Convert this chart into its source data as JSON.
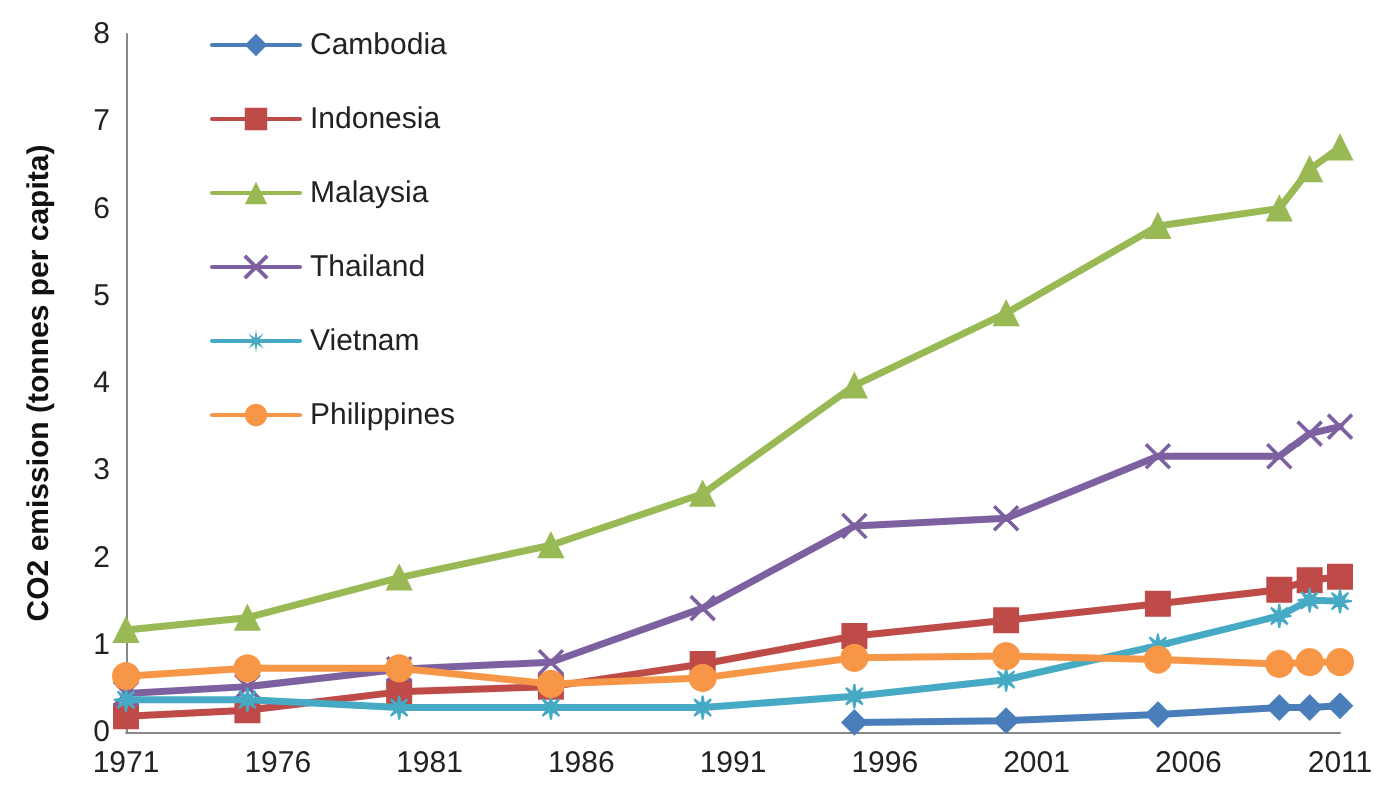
{
  "chart_data": {
    "type": "line",
    "ylabel": "CO2 emission (tonnes per capita)",
    "x": [
      1971,
      1975,
      1980,
      1985,
      1990,
      1995,
      2000,
      2005,
      2009,
      2010,
      2011
    ],
    "xlim": [
      1971,
      2011
    ],
    "xticks": [
      1971,
      1976,
      1981,
      1986,
      1991,
      1996,
      2001,
      2006,
      2011
    ],
    "ylim": [
      0,
      8
    ],
    "yticks": [
      0,
      1,
      2,
      3,
      4,
      5,
      6,
      7,
      8
    ],
    "grid": false,
    "legend": "top left",
    "line_style": "solid",
    "series": [
      {
        "name": "Cambodia",
        "color": "#4a7ebb",
        "marker": "diamond",
        "values": [
          null,
          null,
          null,
          null,
          null,
          0.11,
          0.13,
          0.2,
          0.28,
          0.28,
          0.3
        ]
      },
      {
        "name": "Indonesia",
        "color": "#be4b48",
        "marker": "square",
        "values": [
          0.18,
          0.25,
          0.46,
          0.52,
          0.78,
          1.1,
          1.28,
          1.47,
          1.63,
          1.74,
          1.78
        ]
      },
      {
        "name": "Malaysia",
        "color": "#98b954",
        "marker": "triangle",
        "values": [
          1.17,
          1.31,
          1.77,
          2.14,
          2.73,
          3.97,
          4.8,
          5.8,
          6.0,
          6.45,
          6.7
        ]
      },
      {
        "name": "Thailand",
        "color": "#7d60a0",
        "marker": "cross",
        "values": [
          0.44,
          0.52,
          0.72,
          0.8,
          1.42,
          2.36,
          2.45,
          3.16,
          3.16,
          3.42,
          3.5
        ]
      },
      {
        "name": "Vietnam",
        "color": "#46aac5",
        "marker": "star",
        "values": [
          0.37,
          0.37,
          0.28,
          0.28,
          0.28,
          0.41,
          0.6,
          0.99,
          1.33,
          1.51,
          1.5
        ]
      },
      {
        "name": "Philippines",
        "color": "#f79646",
        "marker": "circle",
        "values": [
          0.64,
          0.73,
          0.73,
          0.55,
          0.62,
          0.85,
          0.87,
          0.83,
          0.78,
          0.8,
          0.8
        ]
      }
    ]
  }
}
